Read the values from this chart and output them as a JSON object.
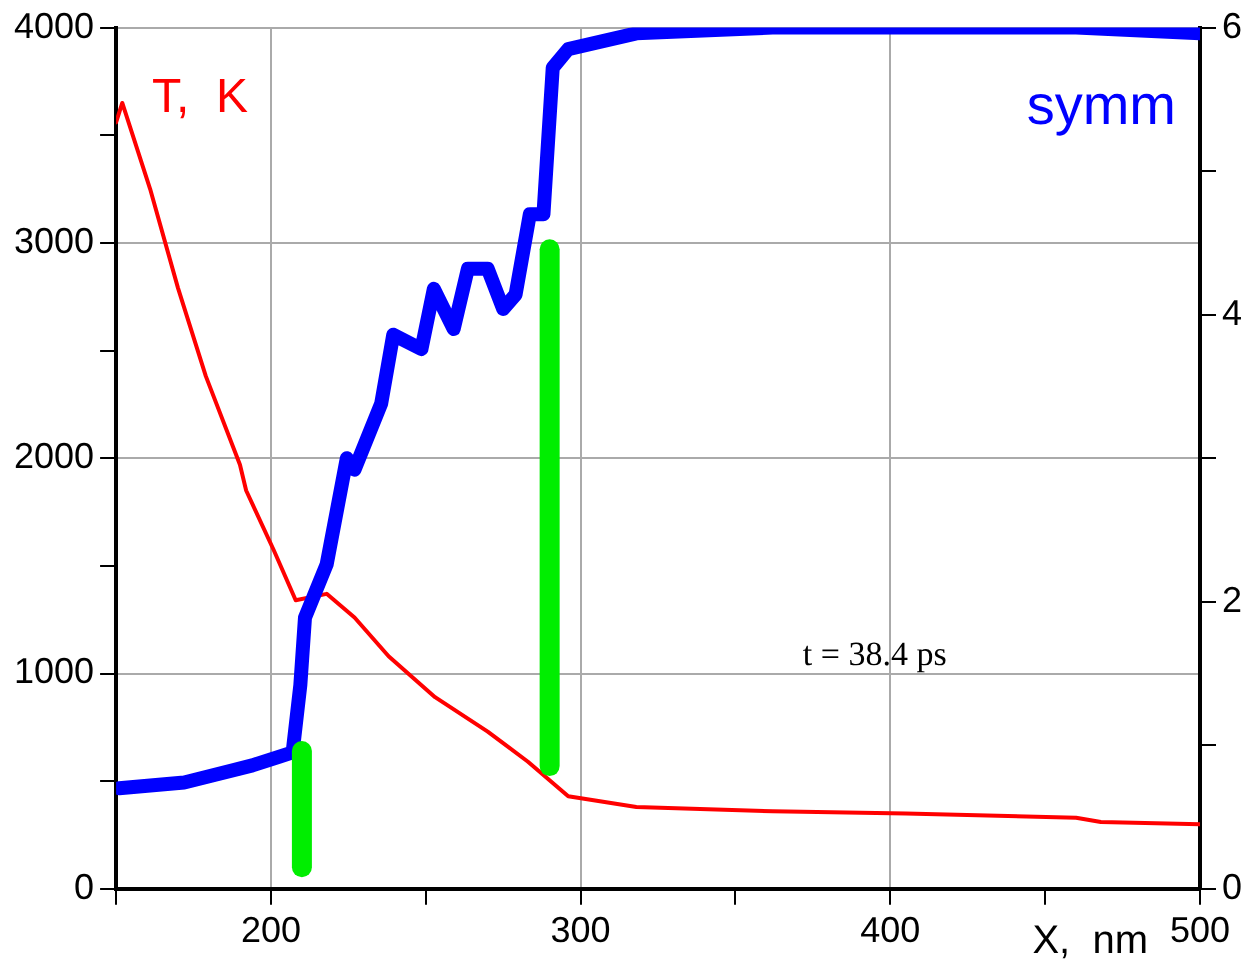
{
  "chart_data": {
    "type": "line",
    "xlabel": "X,  nm",
    "ylabel": "T,  K",
    "y2label": "symm",
    "annotations": [
      "t = 38.4 ps"
    ],
    "xlim": [
      150,
      500
    ],
    "xticks": [
      {
        "value": 150,
        "label": null
      },
      200,
      {
        "value": 250,
        "label": null
      },
      300,
      {
        "value": 350,
        "label": null
      },
      400,
      {
        "value": 450,
        "label": null
      },
      500
    ],
    "ylim": [
      0,
      4000
    ],
    "yticks": [
      0,
      {
        "value": 500,
        "label": null
      },
      1000,
      {
        "value": 1500,
        "label": null
      },
      2000,
      {
        "value": 2500,
        "label": null
      },
      3000,
      {
        "value": 3500,
        "label": null
      },
      4000
    ],
    "y2lim": [
      0,
      6
    ],
    "y2ticks": [
      0,
      {
        "value": 1,
        "label": null
      },
      2,
      {
        "value": 3,
        "label": null
      },
      4,
      {
        "value": 5,
        "label": null
      },
      6
    ],
    "grid": true,
    "legend": false,
    "marker": "none",
    "line_style": "solid",
    "series": [
      {
        "color": "#ff0000",
        "x": [
          150,
          152,
          161,
          170,
          179,
          190,
          192,
          201,
          208,
          218,
          227,
          238,
          253,
          270,
          283,
          296,
          318,
          362,
          405,
          460,
          468,
          500
        ],
        "values": [
          3560,
          3650,
          3250,
          2790,
          2380,
          1970,
          1850,
          1570,
          1340,
          1370,
          1260,
          1080,
          890,
          730,
          590,
          430,
          380,
          360,
          350,
          330,
          310,
          300
        ]
      },
      {
        "color": "#0000ff",
        "axis": "y2",
        "x": [
          151,
          172,
          194,
          207,
          209.5,
          211,
          218,
          224.5,
          227,
          235.6,
          239.5,
          248.6,
          252.6,
          259,
          263.6,
          270,
          275,
          279,
          283.6,
          288,
          291,
          296,
          318,
          362,
          460,
          500
        ],
        "values": [
          0.7,
          0.74,
          0.86,
          0.95,
          1.42,
          1.89,
          2.26,
          3.0,
          2.92,
          3.38,
          3.86,
          3.76,
          4.18,
          3.9,
          4.32,
          4.32,
          4.04,
          4.14,
          4.7,
          4.7,
          5.72,
          5.85,
          5.96,
          6.0,
          6.0,
          5.96
        ]
      },
      {
        "color": "#00ee00",
        "x": [
          210,
          210
        ],
        "values": [
          100,
          640
        ]
      },
      {
        "color": "#00ee00",
        "x": [
          290,
          290
        ],
        "values": [
          570,
          2970
        ]
      }
    ]
  }
}
